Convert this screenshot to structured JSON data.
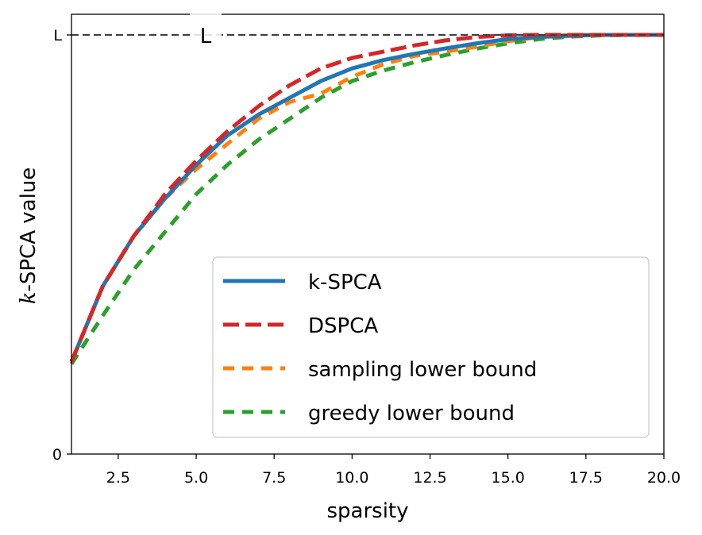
{
  "chart_data": {
    "type": "line",
    "xlabel": "sparsity",
    "ylabel_italic": "k",
    "ylabel_rest": "-SPCA value",
    "xlim": [
      1,
      20
    ],
    "ylim": [
      0,
      1.05
    ],
    "xticks": [
      "2.5",
      "5.0",
      "7.5",
      "10.0",
      "12.5",
      "15.0",
      "17.5",
      "20.0"
    ],
    "yticks": [
      "0",
      "L"
    ],
    "reference_line": {
      "y": 1.0,
      "label": "L",
      "style": "dashed",
      "color": "#404040"
    },
    "legend": {
      "placement": "lower-right"
    },
    "grid": false,
    "series": [
      {
        "name": "k-SPCA",
        "color": "#1f77b4",
        "dash": "solid",
        "x": [
          1,
          2,
          3,
          4,
          5,
          6,
          7,
          8,
          9,
          10,
          11,
          12,
          13,
          14,
          15,
          16,
          17,
          18,
          19,
          20
        ],
        "y": [
          0.22,
          0.4,
          0.52,
          0.61,
          0.69,
          0.76,
          0.81,
          0.85,
          0.89,
          0.92,
          0.94,
          0.955,
          0.968,
          0.98,
          0.99,
          0.995,
          0.998,
          1.0,
          1.0,
          1.0
        ]
      },
      {
        "name": "DSPCA",
        "color": "#d62728",
        "dash": "long",
        "x": [
          1,
          2,
          3,
          4,
          5,
          6,
          7,
          8,
          9,
          10,
          11,
          12,
          13,
          14,
          15,
          16,
          17,
          18,
          19,
          20
        ],
        "y": [
          0.22,
          0.4,
          0.52,
          0.62,
          0.7,
          0.77,
          0.83,
          0.88,
          0.92,
          0.945,
          0.96,
          0.975,
          0.987,
          0.995,
          0.999,
          1.0,
          1.0,
          1.0,
          1.0,
          1.0
        ]
      },
      {
        "name": "sampling lower bound",
        "color": "#ff7f0e",
        "dash": "short",
        "x": [
          1,
          2,
          3,
          4,
          5,
          6,
          7,
          8,
          9,
          10,
          11,
          12,
          13,
          14,
          15,
          16,
          17,
          18,
          19,
          20
        ],
        "y": [
          0.22,
          0.4,
          0.52,
          0.61,
          0.68,
          0.74,
          0.8,
          0.84,
          0.86,
          0.9,
          0.93,
          0.95,
          0.96,
          0.972,
          0.985,
          0.995,
          1.0,
          1.0,
          1.0,
          1.0
        ]
      },
      {
        "name": "greedy lower bound",
        "color": "#2ca02c",
        "dash": "short",
        "x": [
          1,
          2,
          3,
          4,
          5,
          6,
          7,
          8,
          9,
          10,
          11,
          12,
          13,
          14,
          15,
          16,
          17,
          18,
          19,
          20
        ],
        "y": [
          0.215,
          0.33,
          0.44,
          0.53,
          0.62,
          0.69,
          0.75,
          0.8,
          0.85,
          0.89,
          0.915,
          0.935,
          0.952,
          0.967,
          0.98,
          0.99,
          0.996,
          0.999,
          1.0,
          1.0
        ]
      }
    ]
  }
}
